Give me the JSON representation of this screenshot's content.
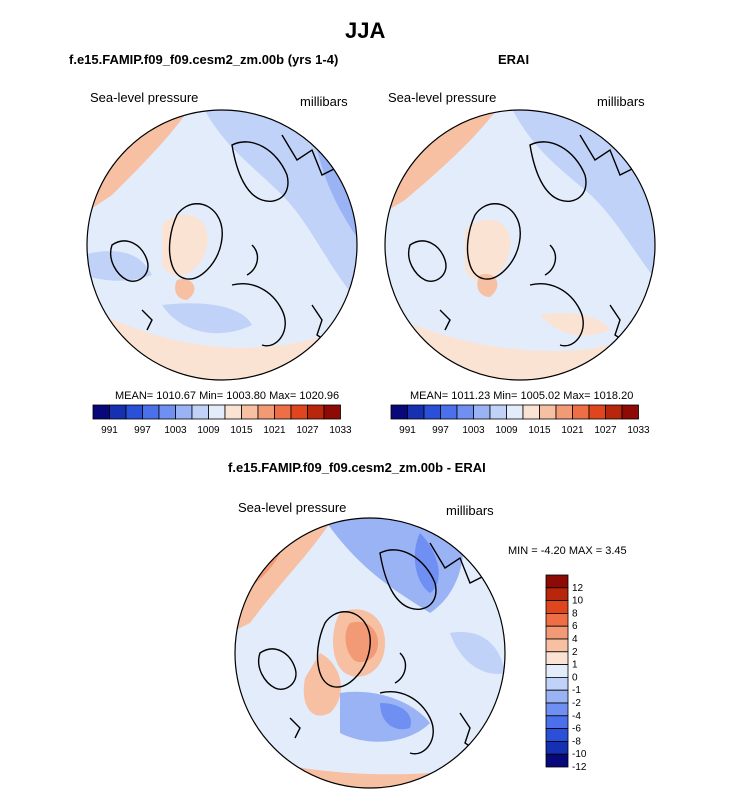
{
  "title": "JJA",
  "panels": [
    {
      "title": "f.e15.FAMIP.f09_f09.cesm2_zm.00b (yrs 1-4)",
      "variable": "Sea-level pressure",
      "units": "millibars",
      "stats": "MEAN= 1010.67  Min= 1003.80  Max= 1020.96"
    },
    {
      "title": "ERAI",
      "variable": "Sea-level pressure",
      "units": "millibars",
      "stats": "MEAN= 1011.23  Min= 1005.02  Max= 1018.20"
    },
    {
      "title": "f.e15.FAMIP.f09_f09.cesm2_zm.00b - ERAI",
      "variable": "Sea-level pressure",
      "units": "millibars",
      "stats": "MIN =  -4.20 MAX =   3.45"
    }
  ],
  "colorbar_abs": {
    "labels": [
      "991",
      "997",
      "1003",
      "1009",
      "1015",
      "1021",
      "1027",
      "1033"
    ],
    "colors": [
      "#08087a",
      "#1530b0",
      "#2a4fd8",
      "#4b70ec",
      "#6f90f2",
      "#9ab3f5",
      "#c1d2f8",
      "#e3ecfb",
      "#fbe3d3",
      "#f7c0a3",
      "#f29a76",
      "#ee6e45",
      "#e0451e",
      "#b8260b",
      "#8e0a05"
    ]
  },
  "colorbar_diff": {
    "labels": [
      "12",
      "10",
      "8",
      "6",
      "4",
      "2",
      "1",
      "0",
      "-1",
      "-2",
      "-4",
      "-6",
      "-8",
      "-10",
      "-12"
    ],
    "colors": [
      "#8e0a05",
      "#b8260b",
      "#e0451e",
      "#ee6e45",
      "#f29a76",
      "#f7c0a3",
      "#fbe3d3",
      "#e3ecfb",
      "#c1d2f8",
      "#9ab3f5",
      "#6f90f2",
      "#4b70ec",
      "#2a4fd8",
      "#1530b0",
      "#08087a"
    ]
  }
}
